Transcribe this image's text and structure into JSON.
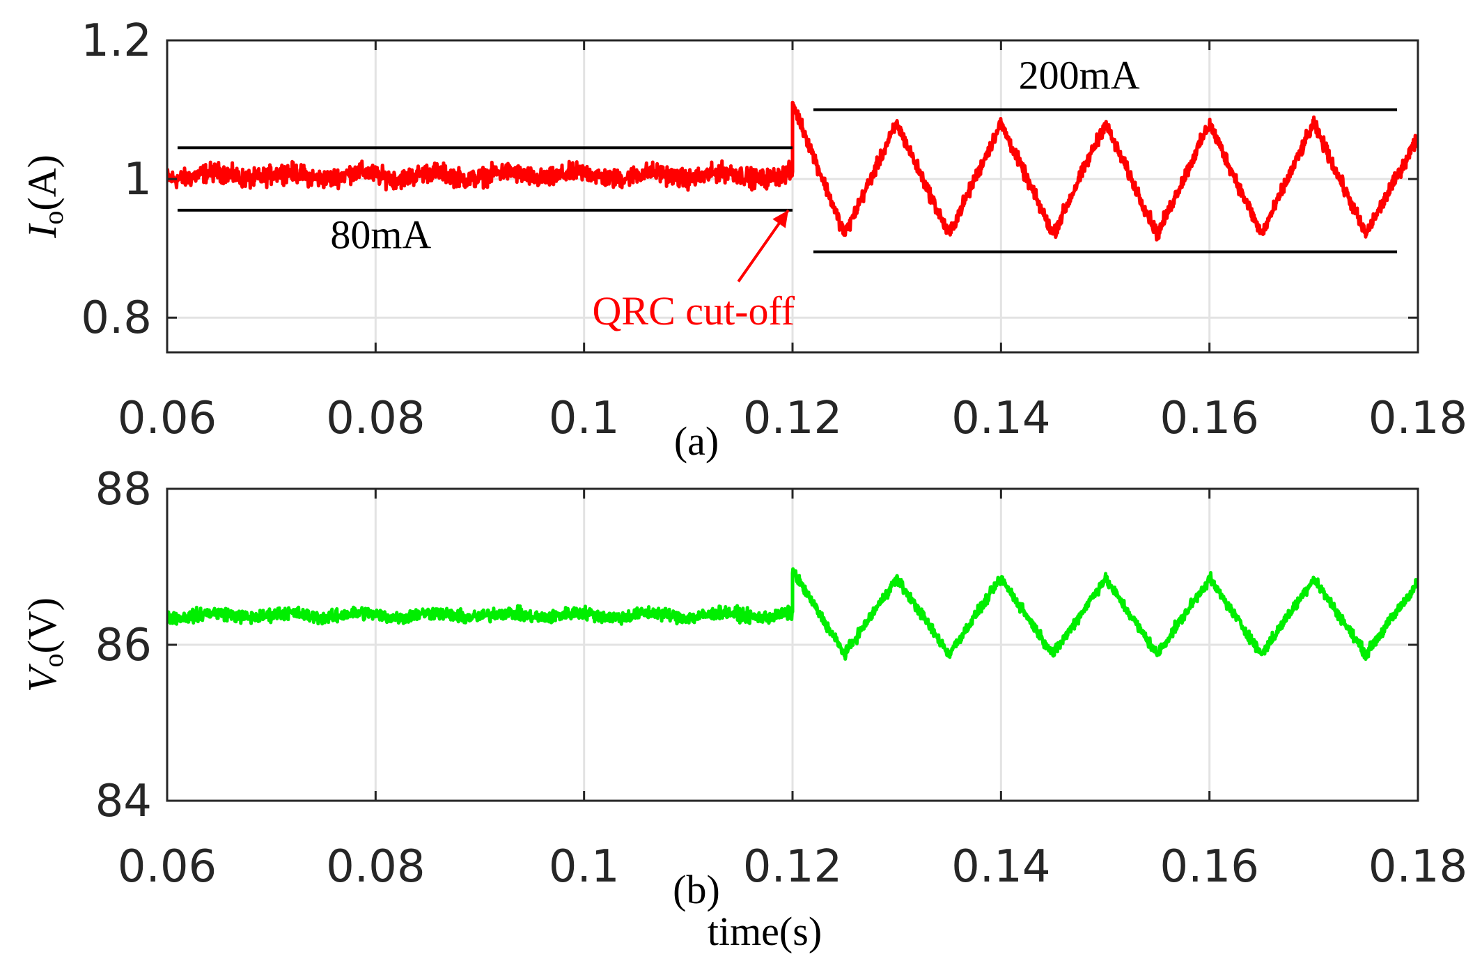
{
  "colors": {
    "current": "#ff0000",
    "voltage": "#00ee00",
    "grid": "#e3e3e3",
    "axis": "#262626",
    "annotation_line": "#000000",
    "annotation_red": "#ff0000"
  },
  "chart_data": [
    {
      "type": "line",
      "panel": "a",
      "caption": "(a)",
      "ylabel_symbol": "I",
      "ylabel_subscript": "o",
      "ylabel_unit": "(A)",
      "xlabel": "",
      "xlim": [
        0.06,
        0.18
      ],
      "ylim": [
        0.75,
        1.2
      ],
      "xticks": [
        0.06,
        0.08,
        0.1,
        0.12,
        0.14,
        0.16,
        0.18
      ],
      "xtick_labels": [
        "0.06",
        "0.08",
        "0.1",
        "0.12",
        "0.14",
        "0.16",
        "0.18"
      ],
      "yticks": [
        0.8,
        1.0,
        1.2
      ],
      "ytick_labels": [
        "0.8",
        "1",
        "1.2"
      ],
      "grid": true,
      "series": [
        {
          "name": "Io",
          "color": "#ff0000",
          "segments": [
            {
              "type": "flat",
              "x_start": 0.06,
              "x_end": 0.12,
              "mean": 1.005,
              "noise_amplitude": 0.02
            },
            {
              "type": "triangle",
              "x_start": 0.12,
              "x_end": 0.18,
              "start_value": 1.11,
              "period": 0.01,
              "peak_times": [
                0.13,
                0.14,
                0.15,
                0.16,
                0.17
              ],
              "trough_times": [
                0.125,
                0.135,
                0.145,
                0.155,
                0.165,
                0.175
              ],
              "max": 1.08,
              "min": 0.92,
              "end_value": 1.06,
              "noise_amplitude": 0.015
            }
          ]
        }
      ],
      "annotations": [
        {
          "text": "80mA",
          "kind": "bracket",
          "x_start": 0.061,
          "x_end": 0.12,
          "y_high": 1.045,
          "y_low": 0.955,
          "label_x": 0.0805,
          "label_y": 0.9
        },
        {
          "text": "200mA",
          "kind": "bracket",
          "x_start": 0.122,
          "x_end": 0.178,
          "y_high": 1.1,
          "y_low": 0.895,
          "label_x": 0.1475,
          "label_y": 1.13
        },
        {
          "text": "QRC cut-off",
          "kind": "arrow",
          "arrow_from_x": 0.1148,
          "arrow_from_y": 0.852,
          "arrow_to_x": 0.1196,
          "arrow_to_y": 0.955,
          "label_x": 0.1105,
          "label_y": 0.79
        }
      ]
    },
    {
      "type": "line",
      "panel": "b",
      "caption": "(b)",
      "ylabel_symbol": "V",
      "ylabel_subscript": "o",
      "ylabel_unit": "(V)",
      "xlabel": "time(s)",
      "xlim": [
        0.06,
        0.18
      ],
      "ylim": [
        84,
        88
      ],
      "xticks": [
        0.06,
        0.08,
        0.1,
        0.12,
        0.14,
        0.16,
        0.18
      ],
      "xtick_labels": [
        "0.06",
        "0.08",
        "0.1",
        "0.12",
        "0.14",
        "0.16",
        "0.18"
      ],
      "yticks": [
        84,
        86,
        88
      ],
      "ytick_labels": [
        "84",
        "86",
        "88"
      ],
      "grid": true,
      "series": [
        {
          "name": "Vo",
          "color": "#00ee00",
          "segments": [
            {
              "type": "flat",
              "x_start": 0.06,
              "x_end": 0.12,
              "mean": 86.38,
              "noise_amplitude": 0.12
            },
            {
              "type": "triangle",
              "x_start": 0.12,
              "x_end": 0.18,
              "start_value": 86.95,
              "period": 0.01,
              "peak_times": [
                0.13,
                0.14,
                0.15,
                0.16,
                0.17
              ],
              "trough_times": [
                0.125,
                0.135,
                0.145,
                0.155,
                0.165,
                0.175
              ],
              "max": 86.85,
              "min": 85.88,
              "end_value": 86.8,
              "noise_amplitude": 0.1
            }
          ]
        }
      ],
      "annotations": []
    }
  ]
}
